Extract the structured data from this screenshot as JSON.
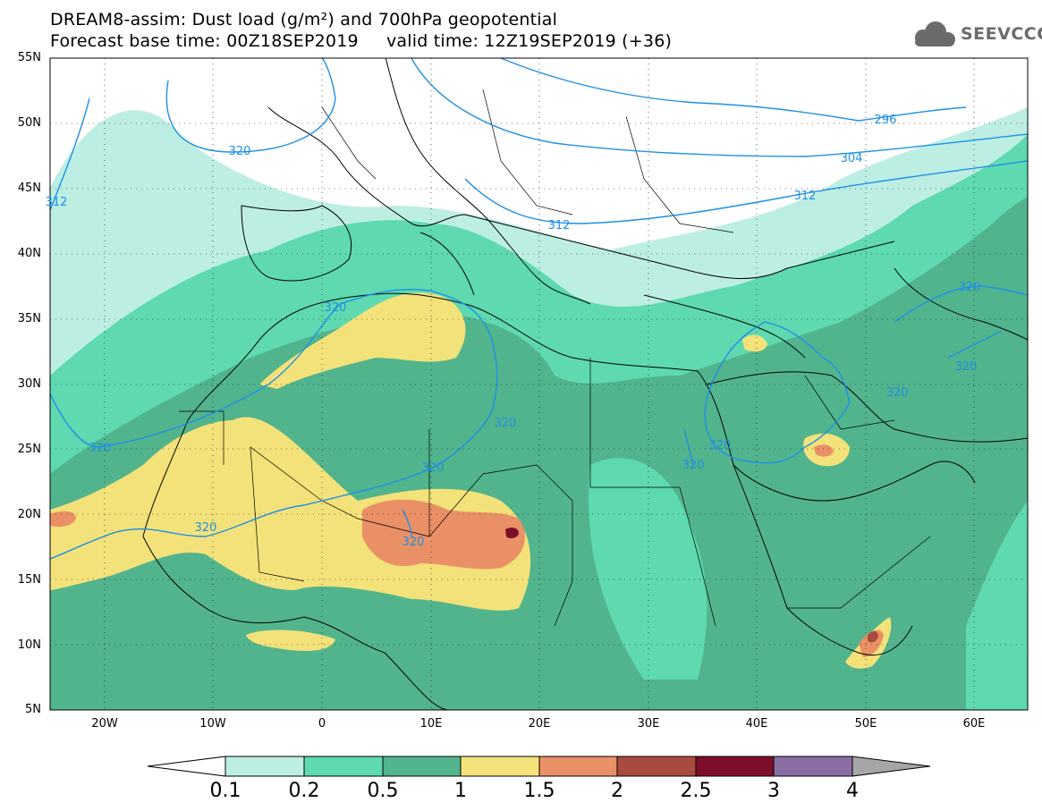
{
  "header": {
    "title_line1": "DREAM8-assim: Dust load (g/m²) and 700hPa geopotential",
    "title_line2": "Forecast base time: 00Z18SEP2019     valid time: 12Z19SEP2019 (+36)",
    "logo_text": "SEEVCCC"
  },
  "axes": {
    "lat_labels": [
      "55N",
      "50N",
      "45N",
      "40N",
      "35N",
      "30N",
      "25N",
      "20N",
      "15N",
      "10N",
      "5N"
    ],
    "lon_labels": [
      "20W",
      "10W",
      "0",
      "10E",
      "20E",
      "30E",
      "40E",
      "50E",
      "60E"
    ]
  },
  "contour_labels": [
    "296",
    "304",
    "312",
    "312",
    "312",
    "320",
    "320",
    "320",
    "320",
    "320",
    "320",
    "320",
    "320",
    "320",
    "320",
    "320",
    "320"
  ],
  "colorbar": {
    "levels": [
      "0.1",
      "0.2",
      "0.5",
      "1",
      "1.5",
      "2",
      "2.5",
      "3",
      "4"
    ],
    "colors": [
      "#bdeee4",
      "#5ed9b0",
      "#52b48c",
      "#f3e27a",
      "#ea9066",
      "#a84b3e",
      "#7d0e2a",
      "#8a6ea3"
    ],
    "under_color": "#ffffff",
    "over_color": "#a6a6a6"
  },
  "colors": {
    "contour": "#1e90e6",
    "map_line": "#000000"
  }
}
